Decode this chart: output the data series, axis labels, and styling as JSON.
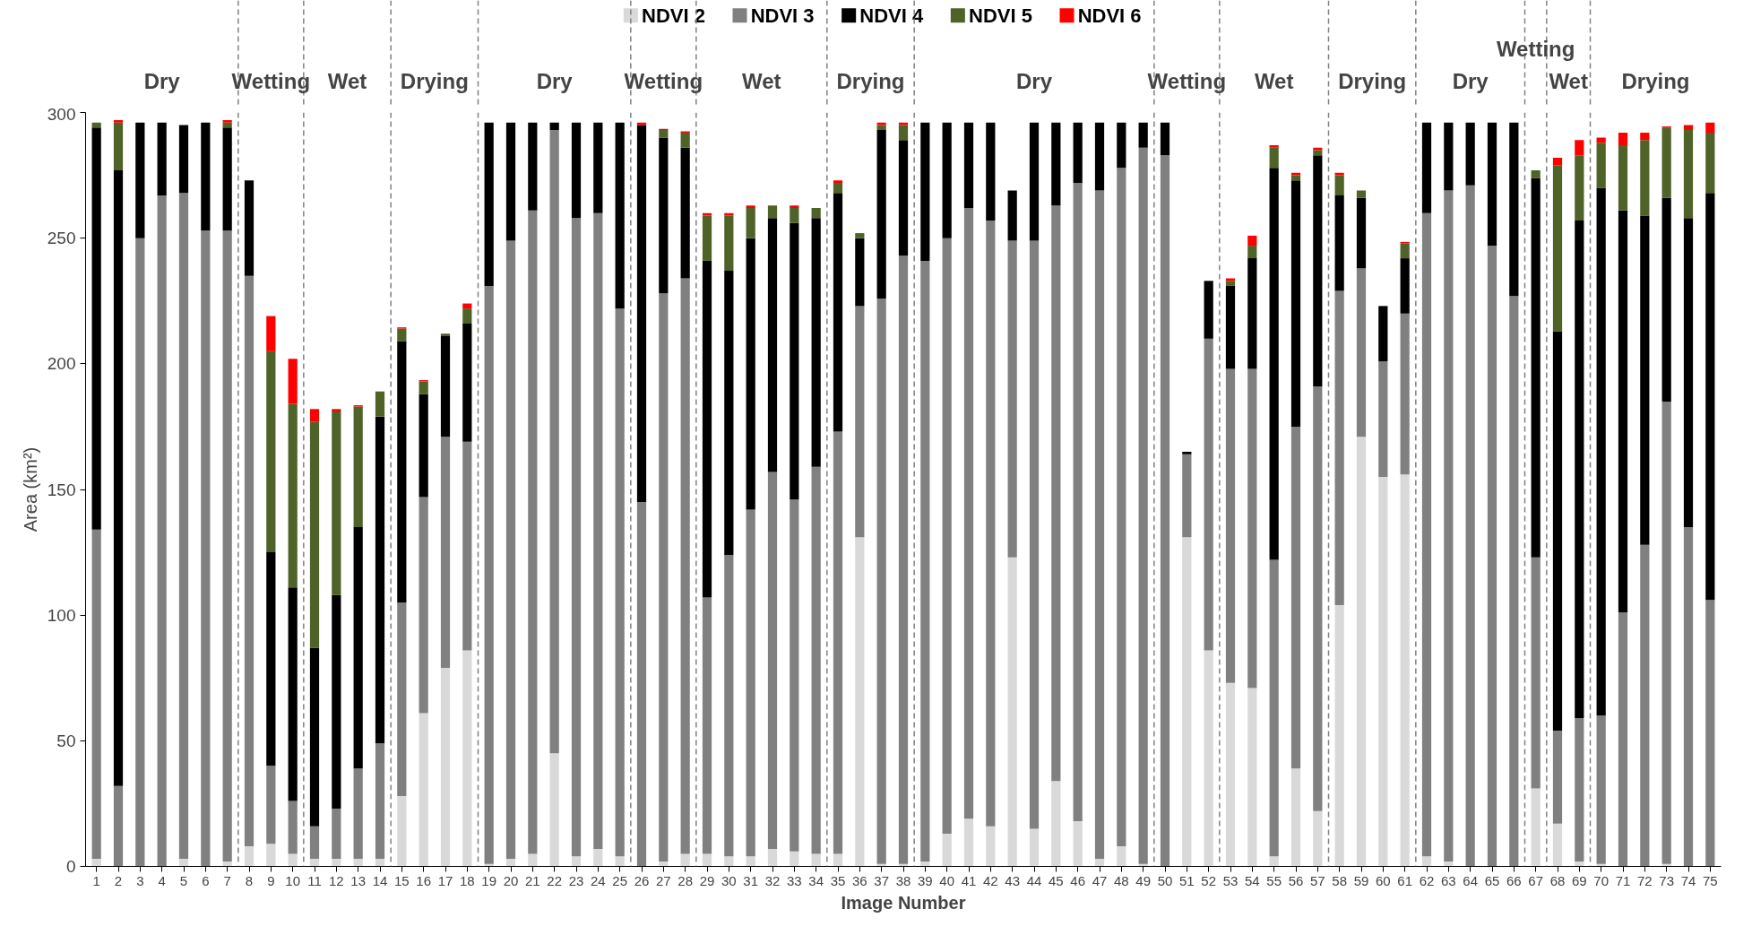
{
  "chart_data": {
    "type": "bar",
    "stacked": true,
    "xlabel": "Image Number",
    "ylabel": "Area (km²)",
    "x": [
      1,
      2,
      3,
      4,
      5,
      6,
      7,
      8,
      9,
      10,
      11,
      12,
      13,
      14,
      15,
      16,
      17,
      18,
      19,
      20,
      21,
      22,
      23,
      24,
      25,
      26,
      27,
      28,
      29,
      30,
      31,
      32,
      33,
      34,
      35,
      36,
      37,
      38,
      39,
      40,
      41,
      42,
      43,
      44,
      45,
      46,
      47,
      48,
      49,
      50,
      51,
      52,
      53,
      54,
      55,
      56,
      57,
      58,
      59,
      60,
      61,
      62,
      63,
      64,
      65,
      66,
      67,
      68,
      69,
      70,
      71,
      72,
      73,
      74,
      75
    ],
    "xlim": [
      0.5,
      75.5
    ],
    "xticks": [
      1,
      2,
      3,
      4,
      5,
      6,
      7,
      8,
      9,
      10,
      11,
      12,
      13,
      14,
      15,
      16,
      17,
      18,
      19,
      20,
      21,
      22,
      23,
      24,
      25,
      26,
      27,
      28,
      29,
      30,
      31,
      32,
      33,
      34,
      35,
      36,
      37,
      38,
      39,
      40,
      41,
      42,
      43,
      44,
      45,
      46,
      47,
      48,
      49,
      50,
      51,
      52,
      53,
      54,
      55,
      56,
      57,
      58,
      59,
      60,
      61,
      62,
      63,
      64,
      65,
      66,
      67,
      68,
      69,
      70,
      71,
      72,
      73,
      74,
      75
    ],
    "ylim": [
      0,
      300
    ],
    "yticks": [
      0,
      50,
      100,
      150,
      200,
      250,
      300
    ],
    "grid": false,
    "legend": "top",
    "series": [
      {
        "name": "NDVI 2",
        "color": "#d9d9d9",
        "values": [
          3,
          0,
          0,
          0,
          3,
          0,
          2,
          8,
          9,
          5,
          3,
          3,
          3,
          3,
          28,
          61,
          79,
          86,
          1,
          3,
          5,
          45,
          4,
          7,
          4,
          0,
          2,
          5,
          5,
          4,
          4,
          7,
          6,
          5,
          5,
          131,
          1,
          1,
          2,
          13,
          19,
          16,
          123,
          15,
          34,
          18,
          3,
          8,
          1,
          0,
          131,
          86,
          73,
          71,
          4,
          39,
          22,
          104,
          171,
          155,
          156,
          4,
          2,
          0,
          0,
          0,
          31,
          17,
          2,
          1,
          0,
          0,
          1,
          0,
          0
        ]
      },
      {
        "name": "NDVI 3",
        "color": "#808080",
        "values": [
          131,
          32,
          250,
          267,
          265,
          253,
          251,
          227,
          31,
          21,
          13,
          20,
          36,
          46,
          77,
          86,
          92,
          83,
          230,
          246,
          256,
          248,
          254,
          253,
          218,
          145,
          226,
          229,
          102,
          120,
          138,
          150,
          140,
          154,
          168,
          92,
          225,
          242,
          239,
          237,
          243,
          241,
          126,
          234,
          229,
          254,
          266,
          270,
          285,
          283,
          33,
          124,
          125,
          127,
          118,
          136,
          169,
          125,
          67,
          46,
          64,
          256,
          267,
          271,
          247,
          227,
          92,
          37,
          57,
          59,
          101,
          128,
          184,
          135,
          106
        ]
      },
      {
        "name": "NDVI 4",
        "color": "#000000",
        "values": [
          160,
          245,
          46,
          29,
          27,
          43,
          41,
          38,
          85,
          85,
          71,
          85,
          96,
          130,
          104,
          41,
          40,
          47,
          65,
          47,
          35,
          3,
          38,
          36,
          74,
          150,
          62,
          52,
          134,
          113,
          108,
          101,
          110,
          99,
          95,
          27,
          67,
          46,
          55,
          46,
          34,
          39,
          20,
          47,
          33,
          24,
          27,
          18,
          10,
          13,
          1,
          23,
          33,
          44,
          156,
          98,
          92,
          38,
          28,
          22,
          22,
          36,
          27,
          25,
          49,
          69,
          151,
          159,
          198,
          210,
          160,
          131,
          81,
          123,
          162
        ]
      },
      {
        "name": "NDVI 5",
        "color": "#4f6228",
        "values": [
          2,
          19,
          0,
          0,
          0,
          0,
          2,
          0,
          80,
          73,
          90,
          73,
          48,
          10,
          5,
          5,
          1,
          6,
          0,
          0,
          0,
          0,
          0,
          0,
          0,
          0,
          3,
          6,
          18,
          22,
          12,
          5,
          6,
          4,
          4,
          2,
          2,
          6,
          0,
          0,
          0,
          0,
          0,
          0,
          0,
          0,
          0,
          0,
          0,
          0,
          0,
          0,
          2,
          5,
          8,
          2,
          2,
          8,
          3,
          0,
          6,
          0,
          0,
          0,
          0,
          0,
          3,
          66,
          26,
          18,
          26,
          30,
          28,
          35,
          24
        ]
      },
      {
        "name": "NDVI 6",
        "color": "#ff0000",
        "values": [
          0,
          1,
          0,
          0,
          0,
          0,
          1,
          0,
          14,
          18,
          5,
          1,
          0.5,
          0,
          0.5,
          0.5,
          0,
          2,
          0,
          0,
          0,
          0,
          0,
          0,
          0,
          1,
          0.5,
          0.5,
          1,
          1,
          1,
          0,
          1,
          0,
          1,
          0,
          1,
          1,
          0,
          0,
          0,
          0,
          0,
          0,
          0,
          0,
          0,
          0,
          0,
          0,
          0,
          0,
          1,
          4,
          1,
          1,
          1,
          1,
          0,
          0,
          0.5,
          0,
          0,
          0,
          0,
          0,
          0,
          3,
          6,
          2,
          5,
          3,
          0.5,
          2,
          4
        ]
      }
    ],
    "ref_lines": [
      {
        "axis": "x",
        "value": 7.5,
        "color": "#808080",
        "line_style": "dashed"
      },
      {
        "axis": "x",
        "value": 10.5,
        "color": "#808080",
        "line_style": "dashed"
      },
      {
        "axis": "x",
        "value": 14.5,
        "color": "#808080",
        "line_style": "dashed"
      },
      {
        "axis": "x",
        "value": 18.5,
        "color": "#808080",
        "line_style": "dashed"
      },
      {
        "axis": "x",
        "value": 25.5,
        "color": "#808080",
        "line_style": "dashed"
      },
      {
        "axis": "x",
        "value": 28.5,
        "color": "#808080",
        "line_style": "dashed"
      },
      {
        "axis": "x",
        "value": 34.5,
        "color": "#808080",
        "line_style": "dashed"
      },
      {
        "axis": "x",
        "value": 38.5,
        "color": "#808080",
        "line_style": "dashed"
      },
      {
        "axis": "x",
        "value": 49.5,
        "color": "#808080",
        "line_style": "dashed"
      },
      {
        "axis": "x",
        "value": 52.5,
        "color": "#808080",
        "line_style": "dashed"
      },
      {
        "axis": "x",
        "value": 57.5,
        "color": "#808080",
        "line_style": "dashed"
      },
      {
        "axis": "x",
        "value": 61.5,
        "color": "#808080",
        "line_style": "dashed"
      },
      {
        "axis": "x",
        "value": 66.5,
        "color": "#808080",
        "line_style": "dashed"
      },
      {
        "axis": "x",
        "value": 67.5,
        "color": "#808080",
        "line_style": "dashed"
      },
      {
        "axis": "x",
        "value": 69.5,
        "color": "#808080",
        "line_style": "dashed"
      }
    ],
    "annotations": [
      "Dry",
      "Wetting",
      "Wet",
      "Drying",
      "Dry",
      "Wetting",
      "Wet",
      "Drying",
      "Dry",
      "Wetting",
      "Wet",
      "Drying",
      "Dry",
      "Wetting",
      "Wet",
      "Drying"
    ]
  }
}
